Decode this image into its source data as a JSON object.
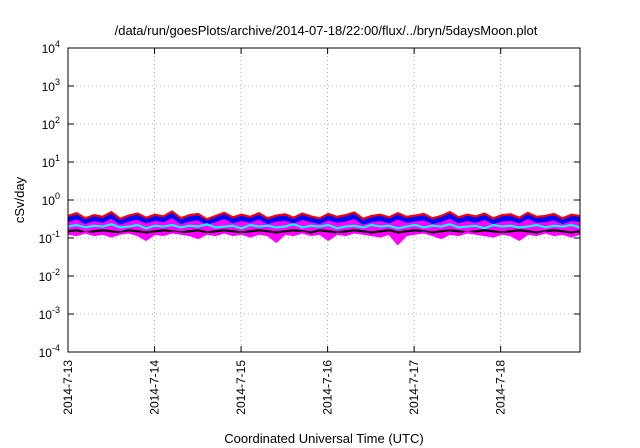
{
  "chart_data": {
    "type": "area",
    "title": "/data/run/goesPlots/archive/2014-07-18/22:00/flux/../bryn/5daysMoon.plot",
    "xlabel": "Coordinated Universal Time (UTC)",
    "ylabel": "cSv/day",
    "yscale": "log",
    "ylim": [
      0.0001,
      10000
    ],
    "y_ticks": [
      {
        "value": 0.0001,
        "base": "10",
        "exp": "-4"
      },
      {
        "value": 0.001,
        "base": "10",
        "exp": "-3"
      },
      {
        "value": 0.01,
        "base": "10",
        "exp": "-2"
      },
      {
        "value": 0.1,
        "base": "10",
        "exp": "-1"
      },
      {
        "value": 1,
        "base": "10",
        "exp": "0"
      },
      {
        "value": 10,
        "base": "10",
        "exp": "1"
      },
      {
        "value": 100,
        "base": "10",
        "exp": "2"
      },
      {
        "value": 1000,
        "base": "10",
        "exp": "3"
      },
      {
        "value": 10000,
        "base": "10",
        "exp": "4"
      }
    ],
    "xlim": [
      "2014-07-13",
      "2014-07-18 22:00"
    ],
    "x_ticks": [
      "2014-7-13",
      "2014-7-14",
      "2014-7-15",
      "2014-7-16",
      "2014-7-17",
      "2014-7-18"
    ],
    "grid": true,
    "series": [
      {
        "color": "#ff00ff",
        "level": 0.125,
        "values": [
          0.13,
          0.12,
          0.14,
          0.12,
          0.13,
          0.11,
          0.13,
          0.14,
          0.12,
          0.09,
          0.13,
          0.12,
          0.14,
          0.13,
          0.12,
          0.1,
          0.13,
          0.12,
          0.14,
          0.12,
          0.13,
          0.11,
          0.13,
          0.12,
          0.08,
          0.13,
          0.12,
          0.14,
          0.12,
          0.13,
          0.09,
          0.13,
          0.12,
          0.14,
          0.13,
          0.12,
          0.11,
          0.13,
          0.07,
          0.12,
          0.13,
          0.14,
          0.12,
          0.1,
          0.13,
          0.12,
          0.14,
          0.13,
          0.12,
          0.11,
          0.13,
          0.12,
          0.09,
          0.13,
          0.12,
          0.14,
          0.12,
          0.13,
          0.11,
          0.13
        ]
      },
      {
        "color": "#000000",
        "level": 0.15,
        "values": [
          0.15,
          0.16,
          0.14,
          0.15,
          0.16,
          0.15,
          0.14,
          0.16,
          0.15,
          0.14,
          0.15,
          0.16,
          0.15,
          0.14,
          0.15,
          0.16,
          0.14,
          0.15,
          0.16,
          0.15,
          0.14,
          0.15,
          0.16,
          0.15,
          0.14,
          0.15,
          0.16,
          0.15,
          0.14,
          0.16,
          0.15,
          0.14,
          0.15,
          0.16,
          0.15,
          0.14,
          0.15,
          0.16,
          0.14,
          0.15,
          0.16,
          0.15,
          0.14,
          0.15,
          0.16,
          0.15,
          0.14,
          0.15,
          0.16,
          0.15,
          0.14,
          0.15,
          0.16,
          0.15,
          0.14,
          0.15,
          0.16,
          0.15,
          0.14,
          0.15
        ]
      },
      {
        "color": "#00ffff",
        "level": 0.2,
        "values": [
          0.2,
          0.22,
          0.19,
          0.21,
          0.2,
          0.23,
          0.19,
          0.2,
          0.22,
          0.18,
          0.21,
          0.2,
          0.22,
          0.19,
          0.21,
          0.2,
          0.23,
          0.19,
          0.2,
          0.21,
          0.18,
          0.22,
          0.2,
          0.21,
          0.19,
          0.2,
          0.23,
          0.19,
          0.21,
          0.2,
          0.22,
          0.18,
          0.2,
          0.21,
          0.19,
          0.22,
          0.2,
          0.21,
          0.18,
          0.2,
          0.22,
          0.19,
          0.21,
          0.2,
          0.23,
          0.19,
          0.2,
          0.21,
          0.18,
          0.22,
          0.2,
          0.21,
          0.19,
          0.2,
          0.22,
          0.19,
          0.21,
          0.2,
          0.22,
          0.19
        ]
      },
      {
        "color": "#0000ff",
        "level": 0.28,
        "values": [
          0.28,
          0.33,
          0.25,
          0.3,
          0.27,
          0.35,
          0.24,
          0.29,
          0.32,
          0.26,
          0.3,
          0.28,
          0.36,
          0.25,
          0.29,
          0.31,
          0.24,
          0.28,
          0.34,
          0.26,
          0.3,
          0.27,
          0.33,
          0.25,
          0.29,
          0.3,
          0.26,
          0.32,
          0.28,
          0.25,
          0.31,
          0.27,
          0.29,
          0.34,
          0.24,
          0.28,
          0.3,
          0.26,
          0.33,
          0.27,
          0.29,
          0.31,
          0.25,
          0.28,
          0.35,
          0.26,
          0.3,
          0.27,
          0.32,
          0.25,
          0.29,
          0.3,
          0.26,
          0.34,
          0.27,
          0.28,
          0.31,
          0.25,
          0.3,
          0.28
        ]
      },
      {
        "color": "#ff0000",
        "level": 0.38,
        "values": [
          0.38,
          0.45,
          0.33,
          0.4,
          0.36,
          0.48,
          0.32,
          0.39,
          0.44,
          0.34,
          0.41,
          0.37,
          0.5,
          0.33,
          0.4,
          0.43,
          0.31,
          0.38,
          0.46,
          0.35,
          0.41,
          0.36,
          0.45,
          0.33,
          0.39,
          0.42,
          0.34,
          0.44,
          0.37,
          0.33,
          0.43,
          0.36,
          0.4,
          0.47,
          0.32,
          0.38,
          0.41,
          0.35,
          0.45,
          0.36,
          0.39,
          0.43,
          0.33,
          0.38,
          0.48,
          0.35,
          0.41,
          0.37,
          0.44,
          0.33,
          0.4,
          0.42,
          0.34,
          0.46,
          0.36,
          0.38,
          0.43,
          0.33,
          0.41,
          0.38
        ]
      }
    ]
  }
}
